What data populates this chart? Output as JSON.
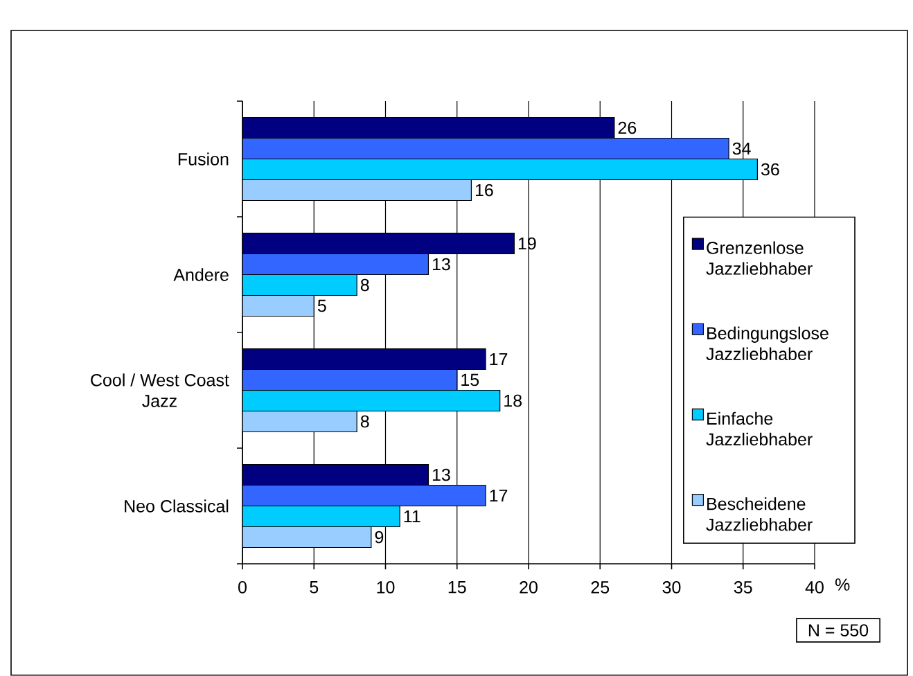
{
  "chart_data": {
    "type": "bar",
    "orientation": "horizontal",
    "categories": [
      "Fusion",
      "Andere",
      "Cool / West Coast Jazz",
      "Neo Classical"
    ],
    "series": [
      {
        "name": "Grenzenlose Jazzliebhaber",
        "color": "#000080",
        "values": [
          26,
          19,
          17,
          13
        ]
      },
      {
        "name": "Bedingungslose Jazzliebhaber",
        "color": "#3366ff",
        "values": [
          34,
          13,
          15,
          17
        ]
      },
      {
        "name": "Einfache Jazzliebhaber",
        "color": "#00ccff",
        "values": [
          36,
          8,
          18,
          11
        ]
      },
      {
        "name": "Bescheidene Jazzliebhaber",
        "color": "#99ccff",
        "values": [
          16,
          5,
          8,
          9
        ]
      }
    ],
    "xlim": [
      0,
      40
    ],
    "xticks": [
      0,
      5,
      10,
      15,
      20,
      25,
      30,
      35,
      40
    ],
    "xlabel": "%",
    "grid": "x",
    "legend": "right",
    "data_labels": true,
    "annotations": [
      "N = 550"
    ]
  }
}
